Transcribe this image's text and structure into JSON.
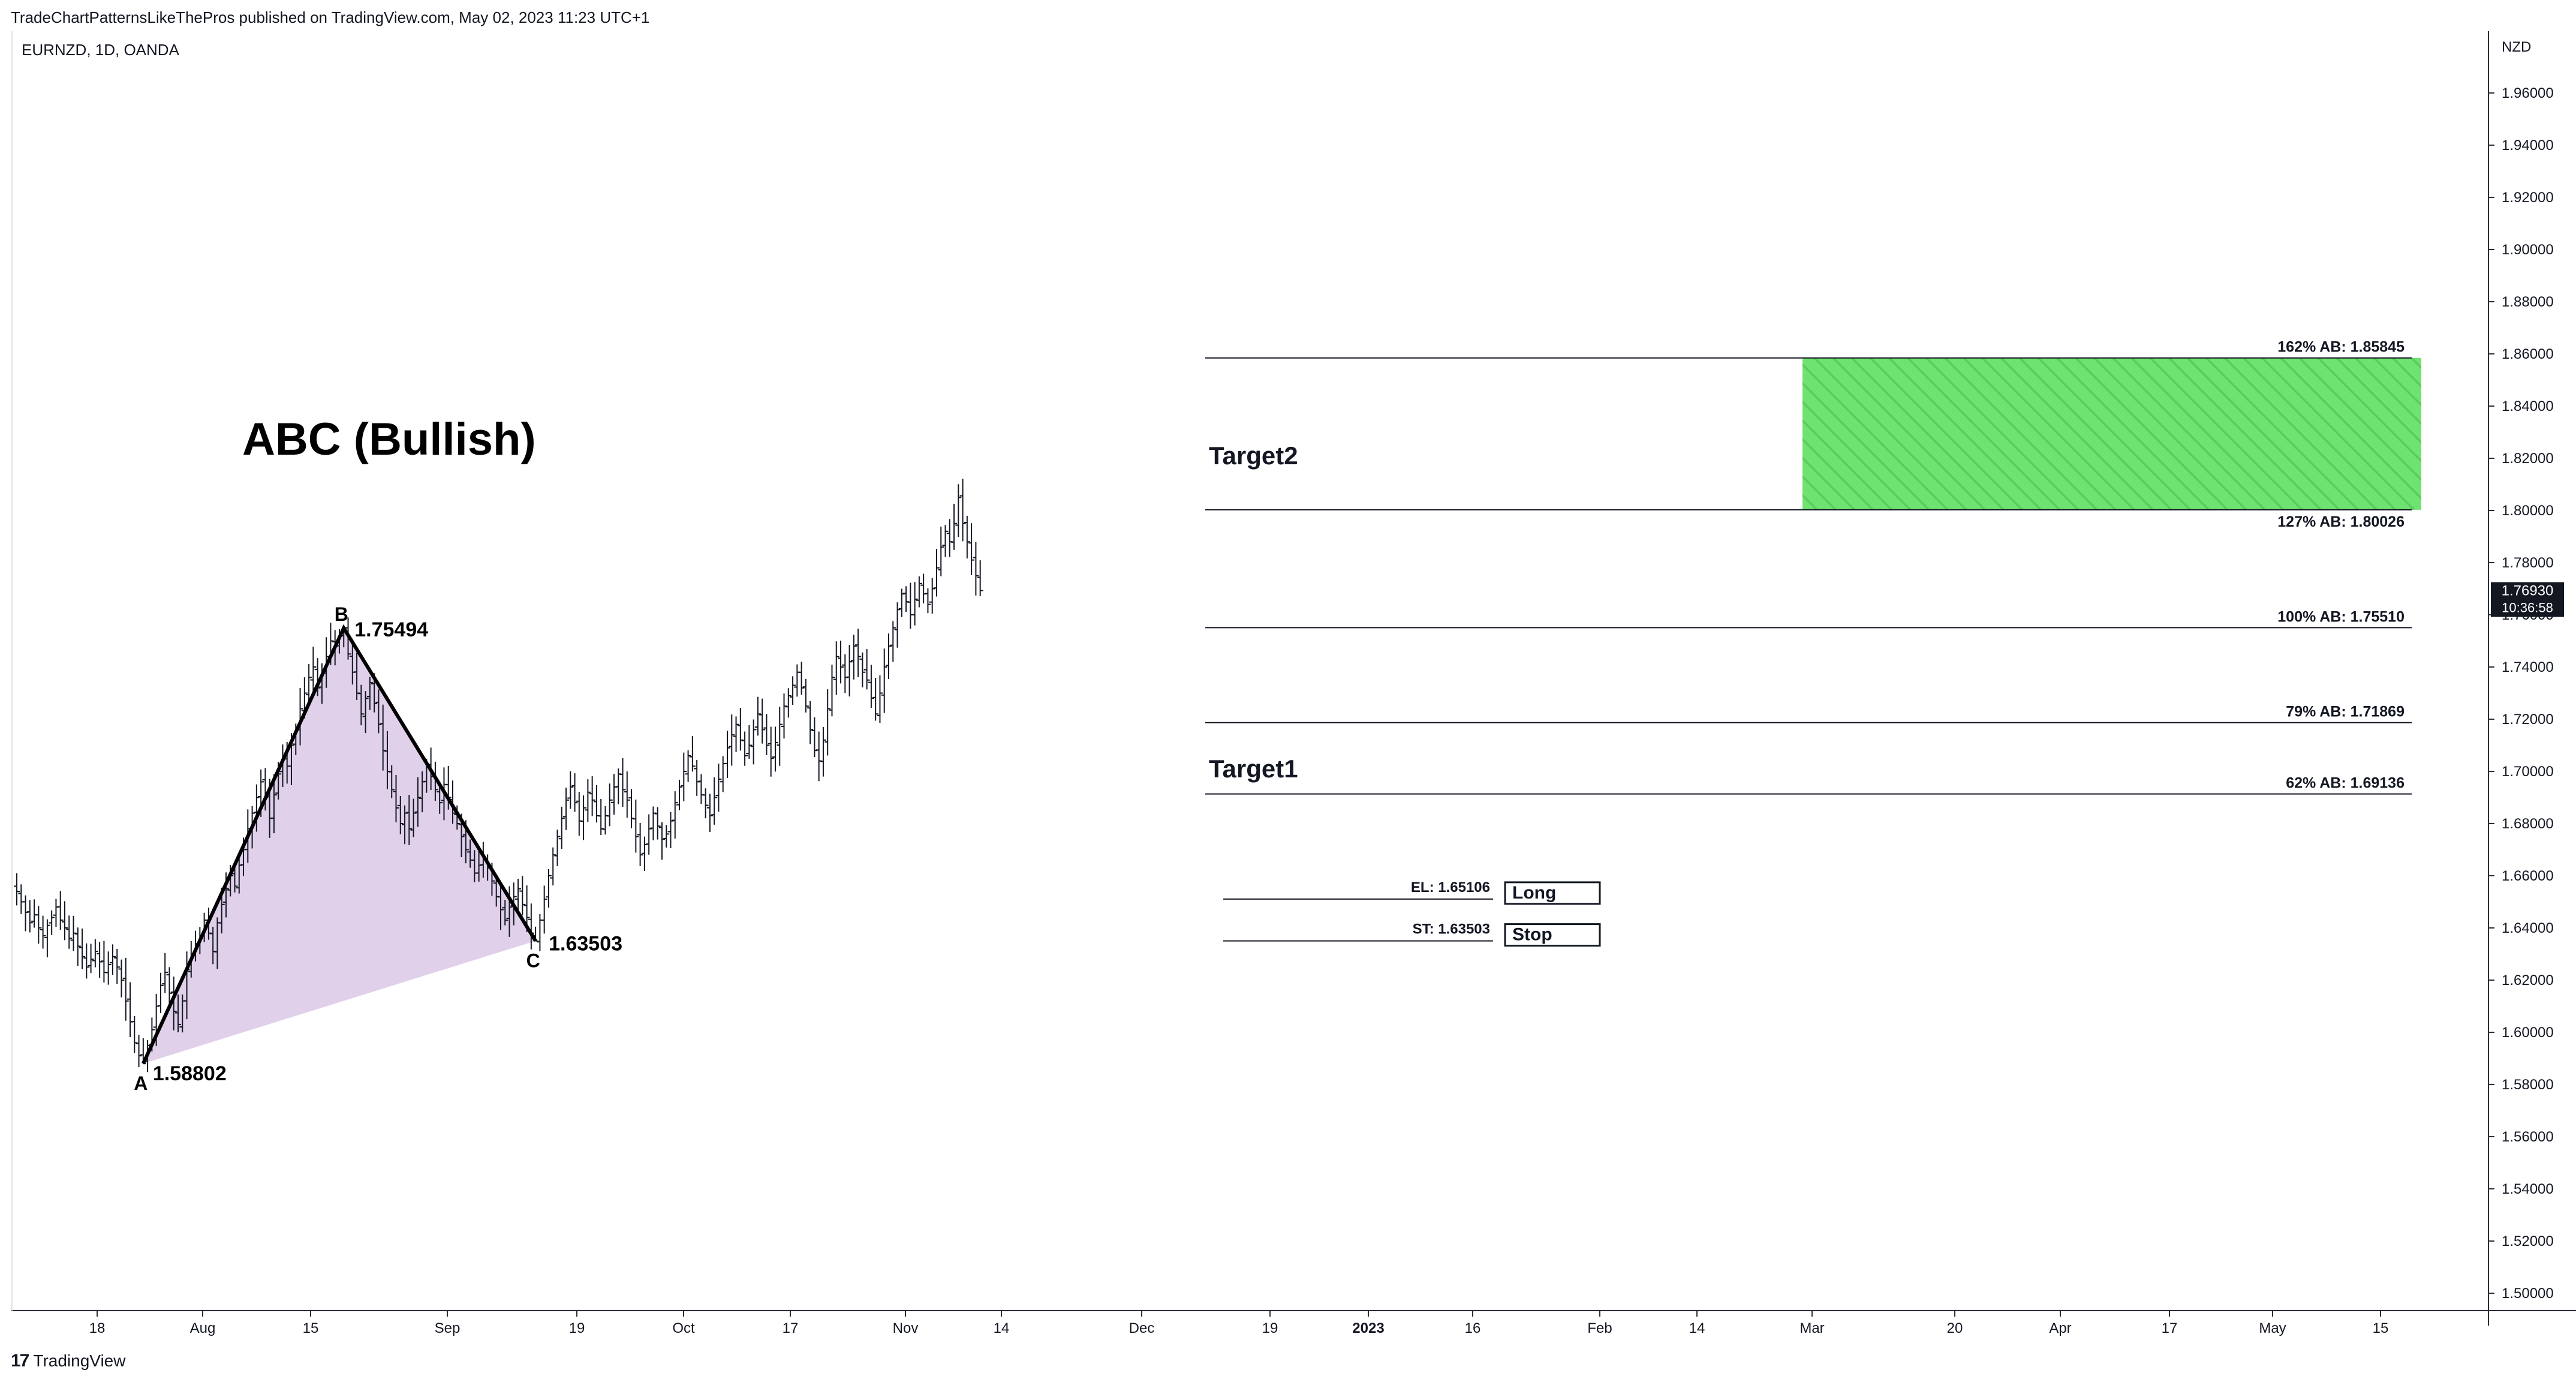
{
  "header": {
    "published_by": "TradeChartPatternsLikeThePros published on TradingView.com, May 02, 2023 11:23 UTC+1",
    "symbol": "EURNZD, 1D, OANDA",
    "currency": "NZD"
  },
  "footer": {
    "logo_glyph": "17",
    "brand": "TradingView"
  },
  "chart_data": {
    "type": "ohlc",
    "title": "ABC (Bullish)",
    "x_tick_labels": [
      "18",
      "Aug",
      "15",
      "Sep",
      "19",
      "Oct",
      "17",
      "Nov",
      "14",
      "Dec",
      "19",
      "2023",
      "16",
      "Feb",
      "14",
      "Mar",
      "20",
      "Apr",
      "17",
      "May",
      "15"
    ],
    "y_tick_labels": [
      "1.96000",
      "1.94000",
      "1.92000",
      "1.90000",
      "1.88000",
      "1.86000",
      "1.84000",
      "1.82000",
      "1.80000",
      "1.78000",
      "1.76000",
      "1.74000",
      "1.72000",
      "1.70000",
      "1.68000",
      "1.66000",
      "1.64000",
      "1.62000",
      "1.60000",
      "1.58000",
      "1.56000",
      "1.54000",
      "1.52000",
      "1.50000"
    ],
    "y_range": [
      1.49,
      1.965
    ],
    "grid": false,
    "last_price": {
      "value": "1.76930",
      "countdown": "10:36:58"
    },
    "pattern_points": [
      {
        "label": "A",
        "value": "1.58802"
      },
      {
        "label": "B",
        "value": "1.75494"
      },
      {
        "label": "C",
        "value": "1.63503"
      }
    ],
    "levels": [
      {
        "label": "162% AB: 1.85845",
        "price": 1.85845
      },
      {
        "label": "127% AB: 1.80026",
        "price": 1.80026
      },
      {
        "label": "100% AB: 1.75510",
        "price": 1.7551
      },
      {
        "label": "79% AB: 1.71869",
        "price": 1.71869
      },
      {
        "label": "62% AB: 1.69136",
        "price": 1.69136
      }
    ],
    "entry": {
      "label": "EL: 1.65106",
      "price": 1.65106,
      "tag": "Long"
    },
    "stop": {
      "label": "ST: 1.63503",
      "price": 1.63503,
      "tag": "Stop"
    },
    "targets": [
      "Target2",
      "Target1"
    ],
    "target_zone": {
      "from": 1.80026,
      "to": 1.85845
    },
    "colors": {
      "bars": "#131722",
      "triangle_fill": "#e1d0ea",
      "target_zone": "#6fe36f",
      "lines": "#131722"
    },
    "closes": [
      1.654,
      1.65,
      1.646,
      1.642,
      1.645,
      1.64,
      1.637,
      1.641,
      1.644,
      1.648,
      1.643,
      1.64,
      1.636,
      1.638,
      1.633,
      1.629,
      1.625,
      1.628,
      1.631,
      1.627,
      1.623,
      1.626,
      1.629,
      1.625,
      1.62,
      1.612,
      1.604,
      1.596,
      1.591,
      1.588,
      1.595,
      1.601,
      1.61,
      1.618,
      1.623,
      1.615,
      1.608,
      1.603,
      1.612,
      1.624,
      1.63,
      1.634,
      1.637,
      1.643,
      1.638,
      1.631,
      1.642,
      1.649,
      1.655,
      1.66,
      1.656,
      1.664,
      1.67,
      1.678,
      1.684,
      1.69,
      1.696,
      1.69,
      1.682,
      1.691,
      1.699,
      1.705,
      1.702,
      1.71,
      1.716,
      1.724,
      1.73,
      1.736,
      1.74,
      1.732,
      1.738,
      1.744,
      1.75,
      1.748,
      1.752,
      1.755,
      1.745,
      1.738,
      1.73,
      1.722,
      1.728,
      1.734,
      1.726,
      1.718,
      1.708,
      1.7,
      1.693,
      1.686,
      1.68,
      1.684,
      1.678,
      1.684,
      1.69,
      1.696,
      1.702,
      1.698,
      1.693,
      1.688,
      1.695,
      1.69,
      1.684,
      1.68,
      1.675,
      1.67,
      1.666,
      1.661,
      1.664,
      1.667,
      1.663,
      1.658,
      1.652,
      1.647,
      1.643,
      1.648,
      1.652,
      1.655,
      1.649,
      1.644,
      1.638,
      1.635,
      1.643,
      1.651,
      1.66,
      1.668,
      1.675,
      1.682,
      1.689,
      1.694,
      1.688,
      1.681,
      1.686,
      1.692,
      1.689,
      1.683,
      1.678,
      1.683,
      1.689,
      1.694,
      1.699,
      1.693,
      1.689,
      1.682,
      1.675,
      1.668,
      1.672,
      1.678,
      1.684,
      1.679,
      1.674,
      1.676,
      1.681,
      1.688,
      1.694,
      1.7,
      1.706,
      1.702,
      1.696,
      1.691,
      1.687,
      1.683,
      1.69,
      1.697,
      1.703,
      1.709,
      1.714,
      1.718,
      1.712,
      1.706,
      1.71,
      1.716,
      1.722,
      1.716,
      1.71,
      1.705,
      1.711,
      1.718,
      1.725,
      1.729,
      1.733,
      1.738,
      1.732,
      1.725,
      1.716,
      1.708,
      1.704,
      1.712,
      1.724,
      1.736,
      1.744,
      1.74,
      1.736,
      1.742,
      1.748,
      1.744,
      1.738,
      1.735,
      1.728,
      1.722,
      1.73,
      1.74,
      1.748,
      1.755,
      1.762,
      1.768,
      1.765,
      1.76,
      1.766,
      1.772,
      1.768,
      1.764,
      1.77,
      1.778,
      1.786,
      1.792,
      1.788,
      1.795,
      1.805,
      1.795,
      1.788,
      1.781,
      1.775,
      1.7693
    ]
  }
}
